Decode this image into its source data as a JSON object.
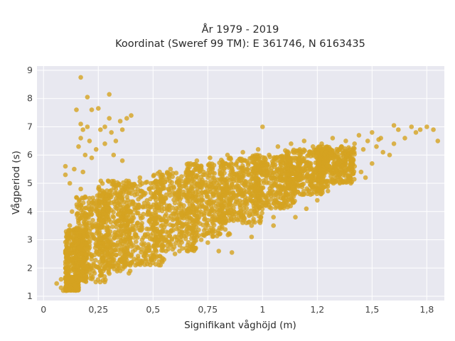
{
  "colors": {
    "plot_bg": "#e8e8f0",
    "grid": "#ffffff",
    "point": "#d4a220"
  },
  "chart_data": {
    "type": "scatter",
    "title_line1": "År 1979 - 2019",
    "title_line2": "Koordinat (Sweref 99 TM): E 361746, N 6163435",
    "xlabel": "Signifikant våghöjd (m)",
    "ylabel": "Vågperiod (s)",
    "xlim": [
      -0.03,
      1.83
    ],
    "ylim": [
      0.85,
      9.15
    ],
    "grid": true,
    "x_ticks": [
      {
        "value": 0,
        "label": "0"
      },
      {
        "value": 0.25,
        "label": "0,25"
      },
      {
        "value": 0.5,
        "label": "0,5"
      },
      {
        "value": 0.75,
        "label": "0,75"
      },
      {
        "value": 1,
        "label": "1"
      },
      {
        "value": 1.25,
        "label": "1,2"
      },
      {
        "value": 1.5,
        "label": "1,5"
      },
      {
        "value": 1.75,
        "label": "1,8"
      }
    ],
    "y_ticks": [
      {
        "value": 1,
        "label": "1"
      },
      {
        "value": 2,
        "label": "2"
      },
      {
        "value": 3,
        "label": "3"
      },
      {
        "value": 4,
        "label": "4"
      },
      {
        "value": 5,
        "label": "5"
      },
      {
        "value": 6,
        "label": "6"
      },
      {
        "value": 7,
        "label": "7"
      },
      {
        "value": 8,
        "label": "8"
      },
      {
        "value": 9,
        "label": "9"
      }
    ],
    "points": [
      [
        0.06,
        1.45
      ],
      [
        0.08,
        1.3
      ],
      [
        0.09,
        1.2
      ],
      [
        0.1,
        1.25
      ],
      [
        0.11,
        1.5
      ],
      [
        0.12,
        1.3
      ],
      [
        0.13,
        1.55
      ],
      [
        0.14,
        1.4
      ],
      [
        0.08,
        1.6
      ],
      [
        0.1,
        2.0
      ],
      [
        0.1,
        2.6
      ],
      [
        0.11,
        3.2
      ],
      [
        0.12,
        3.5
      ],
      [
        0.1,
        5.3
      ],
      [
        0.1,
        5.6
      ],
      [
        0.12,
        5.0
      ],
      [
        0.13,
        4.0
      ],
      [
        0.14,
        5.5
      ],
      [
        0.15,
        7.6
      ],
      [
        0.15,
        4.5
      ],
      [
        0.16,
        6.3
      ],
      [
        0.17,
        4.8
      ],
      [
        0.17,
        6.6
      ],
      [
        0.17,
        7.1
      ],
      [
        0.18,
        5.4
      ],
      [
        0.18,
        6.9
      ],
      [
        0.19,
        6.0
      ],
      [
        0.2,
        7.0
      ],
      [
        0.21,
        6.5
      ],
      [
        0.22,
        7.6
      ],
      [
        0.22,
        5.9
      ],
      [
        0.24,
        6.2
      ],
      [
        0.17,
        8.75
      ],
      [
        0.2,
        8.05
      ],
      [
        0.25,
        7.65
      ],
      [
        0.3,
        8.15
      ],
      [
        0.26,
        6.9
      ],
      [
        0.28,
        7.0
      ],
      [
        0.28,
        6.4
      ],
      [
        0.3,
        7.3
      ],
      [
        0.31,
        6.8
      ],
      [
        0.32,
        6.0
      ],
      [
        0.33,
        6.5
      ],
      [
        0.35,
        7.2
      ],
      [
        0.38,
        7.3
      ],
      [
        0.4,
        7.4
      ],
      [
        0.36,
        6.9
      ],
      [
        0.36,
        5.8
      ],
      [
        0.15,
        3.0
      ],
      [
        0.16,
        3.6
      ],
      [
        0.17,
        2.4
      ],
      [
        0.18,
        2.1
      ],
      [
        0.19,
        3.9
      ],
      [
        0.2,
        2.7
      ],
      [
        0.21,
        3.3
      ],
      [
        0.22,
        2.0
      ],
      [
        0.23,
        4.3
      ],
      [
        0.24,
        3.0
      ],
      [
        0.25,
        2.5
      ],
      [
        0.26,
        3.7
      ],
      [
        0.27,
        4.6
      ],
      [
        0.28,
        2.8
      ],
      [
        0.29,
        3.4
      ],
      [
        0.3,
        4.1
      ],
      [
        0.31,
        2.3
      ],
      [
        0.32,
        3.8
      ],
      [
        0.33,
        4.8
      ],
      [
        0.34,
        2.9
      ],
      [
        0.35,
        3.5
      ],
      [
        0.36,
        4.4
      ],
      [
        0.37,
        2.6
      ],
      [
        0.38,
        5.0
      ],
      [
        0.39,
        3.2
      ],
      [
        0.4,
        4.0
      ],
      [
        0.41,
        2.8
      ],
      [
        0.42,
        4.7
      ],
      [
        0.43,
        3.6
      ],
      [
        0.44,
        5.2
      ],
      [
        0.45,
        3.0
      ],
      [
        0.46,
        4.3
      ],
      [
        0.47,
        2.6
      ],
      [
        0.48,
        3.9
      ],
      [
        0.49,
        5.0
      ],
      [
        0.5,
        3.4
      ],
      [
        0.51,
        4.5
      ],
      [
        0.52,
        2.9
      ],
      [
        0.53,
        5.4
      ],
      [
        0.54,
        3.7
      ],
      [
        0.55,
        4.1
      ],
      [
        0.56,
        3.1
      ],
      [
        0.57,
        4.8
      ],
      [
        0.58,
        5.5
      ],
      [
        0.59,
        3.5
      ],
      [
        0.6,
        4.3
      ],
      [
        0.61,
        3.0
      ],
      [
        0.62,
        5.1
      ],
      [
        0.63,
        3.9
      ],
      [
        0.64,
        4.6
      ],
      [
        0.65,
        3.3
      ],
      [
        0.66,
        5.6
      ],
      [
        0.67,
        4.0
      ],
      [
        0.68,
        3.6
      ],
      [
        0.69,
        4.9
      ],
      [
        0.7,
        5.8
      ],
      [
        0.71,
        3.8
      ],
      [
        0.72,
        4.4
      ],
      [
        0.73,
        5.3
      ],
      [
        0.74,
        3.4
      ],
      [
        0.75,
        4.7
      ],
      [
        0.76,
        5.9
      ],
      [
        0.77,
        4.1
      ],
      [
        0.78,
        3.7
      ],
      [
        0.79,
        5.0
      ],
      [
        0.8,
        4.5
      ],
      [
        0.81,
        5.6
      ],
      [
        0.82,
        3.9
      ],
      [
        0.83,
        4.9
      ],
      [
        0.84,
        6.0
      ],
      [
        0.85,
        4.3
      ],
      [
        0.86,
        5.3
      ],
      [
        0.87,
        4.0
      ],
      [
        0.88,
        5.7
      ],
      [
        0.89,
        4.6
      ],
      [
        0.9,
        5.1
      ],
      [
        0.91,
        6.1
      ],
      [
        0.92,
        4.4
      ],
      [
        0.93,
        5.5
      ],
      [
        0.94,
        4.8
      ],
      [
        0.95,
        5.9
      ],
      [
        0.96,
        4.2
      ],
      [
        0.97,
        5.2
      ],
      [
        0.98,
        6.2
      ],
      [
        0.99,
        4.7
      ],
      [
        1.0,
        5.6
      ],
      [
        1.0,
        7.0
      ],
      [
        1.01,
        4.5
      ],
      [
        1.02,
        5.4
      ],
      [
        1.03,
        6.0
      ],
      [
        1.04,
        4.9
      ],
      [
        1.05,
        5.7
      ],
      [
        1.06,
        4.6
      ],
      [
        1.07,
        6.3
      ],
      [
        1.08,
        5.1
      ],
      [
        1.09,
        5.8
      ],
      [
        1.1,
        4.8
      ],
      [
        1.11,
        6.1
      ],
      [
        1.12,
        5.3
      ],
      [
        1.13,
        6.4
      ],
      [
        1.14,
        5.0
      ],
      [
        1.15,
        5.9
      ],
      [
        1.16,
        4.7
      ],
      [
        1.17,
        6.2
      ],
      [
        1.18,
        5.5
      ],
      [
        1.19,
        6.5
      ],
      [
        1.2,
        5.2
      ],
      [
        1.21,
        6.0
      ],
      [
        1.22,
        5.7
      ],
      [
        1.23,
        6.3
      ],
      [
        1.24,
        5.4
      ],
      [
        1.25,
        6.1
      ],
      [
        1.26,
        5.8
      ],
      [
        1.27,
        6.4
      ],
      [
        1.28,
        5.5
      ],
      [
        1.3,
        6.2
      ],
      [
        1.32,
        6.6
      ],
      [
        1.34,
        5.9
      ],
      [
        1.36,
        6.3
      ],
      [
        1.38,
        6.5
      ],
      [
        1.4,
        6.0
      ],
      [
        1.42,
        6.4
      ],
      [
        1.44,
        6.7
      ],
      [
        1.46,
        6.2
      ],
      [
        1.48,
        6.5
      ],
      [
        1.5,
        6.8
      ],
      [
        1.52,
        6.3
      ],
      [
        1.54,
        6.6
      ],
      [
        1.42,
        5.6
      ],
      [
        1.38,
        5.1
      ],
      [
        1.3,
        5.8
      ],
      [
        1.2,
        4.1
      ],
      [
        1.18,
        4.6
      ],
      [
        1.25,
        4.4
      ],
      [
        1.1,
        4.2
      ],
      [
        1.05,
        3.8
      ],
      [
        0.95,
        3.5
      ],
      [
        0.9,
        3.9
      ],
      [
        0.85,
        3.2
      ],
      [
        0.82,
        3.6
      ],
      [
        0.75,
        2.9
      ],
      [
        0.7,
        3.1
      ],
      [
        0.66,
        2.6
      ],
      [
        0.6,
        2.5
      ],
      [
        0.58,
        2.8
      ],
      [
        0.55,
        2.3
      ],
      [
        0.5,
        2.4
      ],
      [
        0.45,
        2.2
      ],
      [
        0.42,
        2.1
      ],
      [
        0.35,
        1.9
      ],
      [
        0.3,
        1.8
      ],
      [
        0.26,
        1.9
      ],
      [
        0.86,
        2.55
      ],
      [
        0.8,
        2.6
      ],
      [
        0.95,
        3.1
      ],
      [
        1.05,
        3.5
      ],
      [
        1.15,
        3.8
      ],
      [
        0.65,
        2.7
      ],
      [
        0.72,
        3.0
      ],
      [
        0.78,
        3.3
      ],
      [
        1.6,
        6.4
      ],
      [
        1.62,
        6.9
      ],
      [
        1.65,
        6.6
      ],
      [
        1.68,
        7.0
      ],
      [
        1.7,
        6.8
      ],
      [
        1.72,
        6.9
      ],
      [
        1.75,
        7.0
      ],
      [
        1.78,
        6.9
      ],
      [
        1.8,
        6.5
      ],
      [
        1.58,
        6.0
      ],
      [
        1.55,
        6.1
      ],
      [
        1.5,
        5.7
      ],
      [
        1.45,
        5.4
      ],
      [
        1.47,
        5.2
      ],
      [
        1.6,
        7.05
      ],
      [
        1.53,
        6.55
      ]
    ],
    "dense_bands": [
      {
        "x0": 0.1,
        "x1": 0.16,
        "ylo": 1.2,
        "yhi": 1.7
      },
      {
        "x0": 0.1,
        "x1": 0.2,
        "ylo": 1.6,
        "yhi": 3.4
      },
      {
        "x0": 0.15,
        "x1": 0.3,
        "ylo": 1.5,
        "yhi": 4.6
      },
      {
        "x0": 0.25,
        "x1": 0.4,
        "ylo": 1.8,
        "yhi": 5.1
      },
      {
        "x0": 0.35,
        "x1": 0.55,
        "ylo": 2.1,
        "yhi": 5.1
      },
      {
        "x0": 0.5,
        "x1": 0.7,
        "ylo": 2.6,
        "yhi": 5.4
      },
      {
        "x0": 0.65,
        "x1": 0.85,
        "ylo": 3.1,
        "yhi": 5.7
      },
      {
        "x0": 0.8,
        "x1": 1.0,
        "ylo": 3.6,
        "yhi": 5.9
      },
      {
        "x0": 0.95,
        "x1": 1.15,
        "ylo": 4.1,
        "yhi": 6.0
      },
      {
        "x0": 1.1,
        "x1": 1.3,
        "ylo": 4.6,
        "yhi": 6.2
      },
      {
        "x0": 1.25,
        "x1": 1.42,
        "ylo": 5.0,
        "yhi": 6.3
      }
    ]
  }
}
